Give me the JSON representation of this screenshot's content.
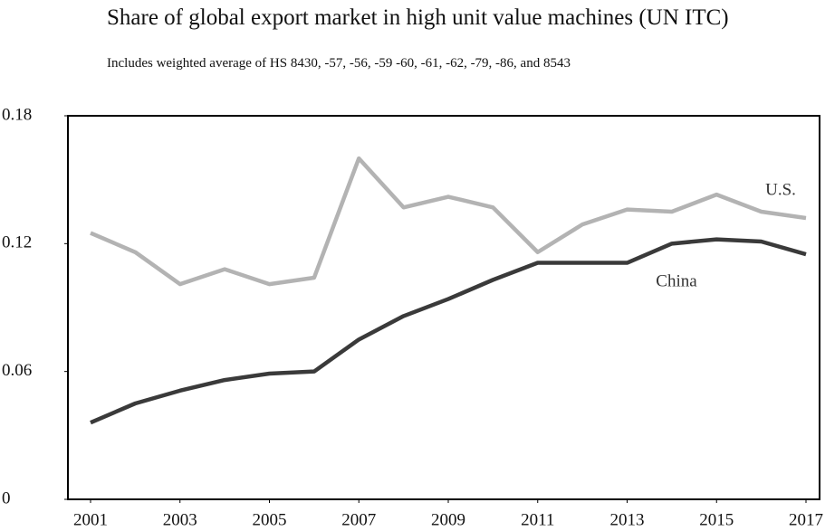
{
  "chart_data": {
    "type": "line",
    "title": "Share of global export market in high unit value machines (UN ITC)",
    "subtitle": "Includes weighted average of HS 8430, -57, -56, -59 -60, -61, -62, -79, -86, and 8543",
    "x": [
      2001,
      2002,
      2003,
      2004,
      2005,
      2006,
      2007,
      2008,
      2009,
      2010,
      2011,
      2012,
      2013,
      2014,
      2015,
      2016,
      2017
    ],
    "xlim": [
      2001,
      2017
    ],
    "xticks": [
      2001,
      2003,
      2005,
      2007,
      2009,
      2011,
      2013,
      2015,
      2017
    ],
    "ylim": [
      0,
      0.18
    ],
    "yticks": [
      0,
      0.06,
      0.12,
      0.18
    ],
    "series": [
      {
        "name": "U.S.",
        "color": "#b3b3b3",
        "values": [
          0.125,
          0.116,
          0.101,
          0.108,
          0.101,
          0.104,
          0.16,
          0.137,
          0.142,
          0.137,
          0.116,
          0.129,
          0.136,
          0.135,
          0.143,
          0.135,
          0.132
        ]
      },
      {
        "name": "China",
        "color": "#3a3a3a",
        "values": [
          0.036,
          0.045,
          0.051,
          0.056,
          0.059,
          0.06,
          0.075,
          0.086,
          0.094,
          0.103,
          0.111,
          0.111,
          0.111,
          0.12,
          0.122,
          0.121,
          0.115
        ]
      }
    ]
  }
}
